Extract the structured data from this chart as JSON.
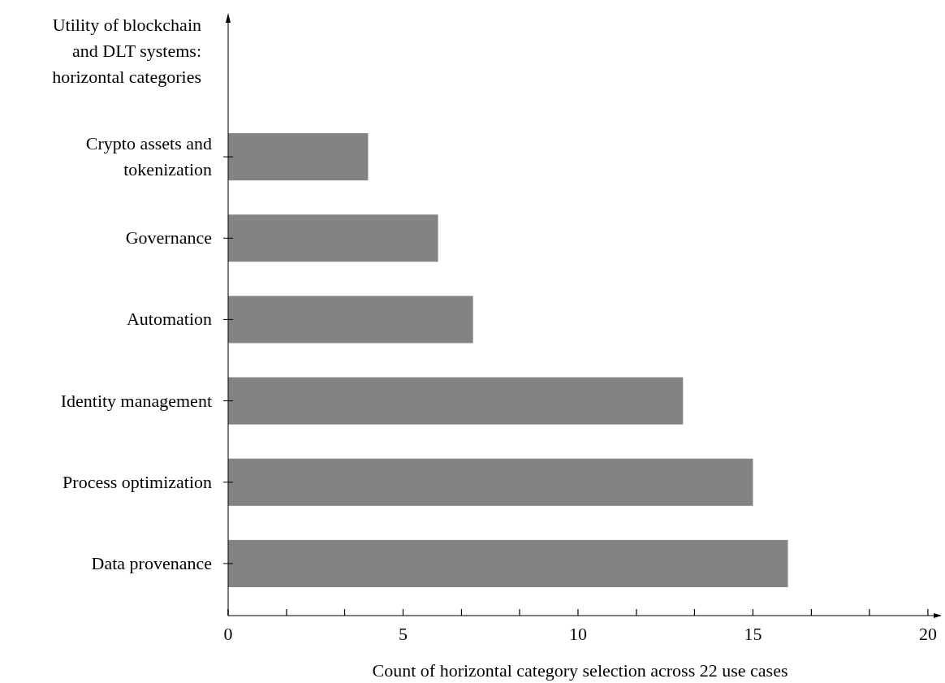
{
  "chart_data": {
    "type": "bar",
    "orientation": "horizontal",
    "ylabel": "Utility of blockchain and DLT systems: horizontal categories",
    "xlabel": "Count of horizontal category selection across 22 use cases",
    "categories": [
      "Crypto assets and tokenization",
      "Governance",
      "Automation",
      "Identity management",
      "Process optimization",
      "Data provenance"
    ],
    "values": [
      4,
      6,
      7,
      13,
      15,
      16
    ],
    "color": "#838386",
    "xlim": [
      0,
      20.35
    ],
    "xticks": [
      0,
      {
        "value": 1.67,
        "label": null
      },
      {
        "value": 3.33,
        "label": null
      },
      5,
      {
        "value": 6.67,
        "label": null
      },
      {
        "value": 8.33,
        "label": null
      },
      10,
      {
        "value": 11.67,
        "label": null
      },
      {
        "value": 13.33,
        "label": null
      },
      15,
      {
        "value": 16.67,
        "label": null
      },
      {
        "value": 18.33,
        "label": null
      },
      20
    ],
    "grid": false
  }
}
